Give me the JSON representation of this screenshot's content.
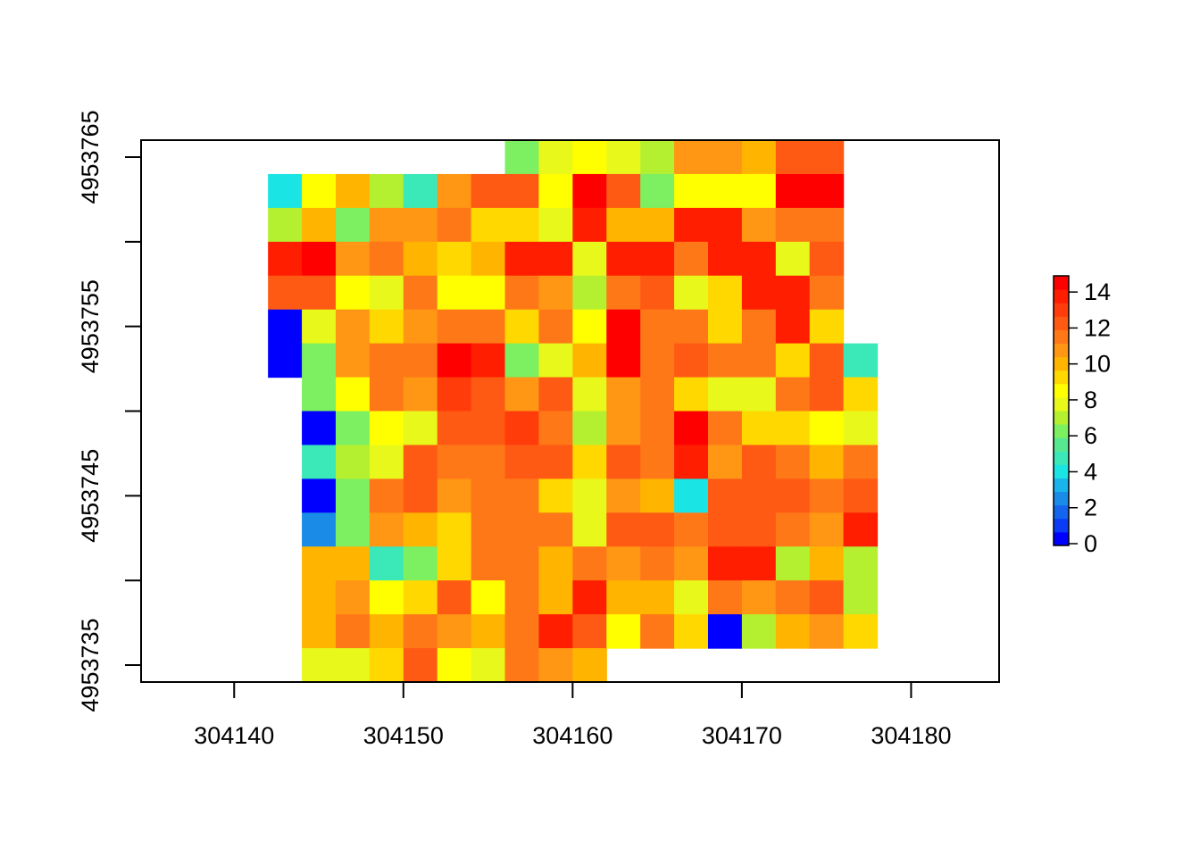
{
  "chart_data": {
    "type": "heatmap",
    "title": "",
    "xlabel": "",
    "ylabel": "",
    "xlim": [
      304134.5,
      304185.2
    ],
    "ylim": [
      4953734,
      4953766
    ],
    "x_ticks": [
      304140,
      304150,
      304160,
      304170,
      304180
    ],
    "y_ticks": [
      4953735,
      4953740,
      4953745,
      4953750,
      4953755,
      4953760,
      4953765
    ],
    "y_tick_labels": [
      "4953735",
      "",
      "4953745",
      "",
      "4953755",
      "",
      "4953765"
    ],
    "cell_size": 2,
    "x_origin": 304142,
    "y_top": 4953766,
    "grid": false,
    "legend": {
      "position": "right",
      "min": 0,
      "max": 15,
      "ticks": [
        0,
        2,
        4,
        6,
        8,
        10,
        12,
        14
      ],
      "tick_labels": [
        "0",
        "2",
        "4",
        "6",
        "8",
        "10",
        "12",
        "14"
      ],
      "colors": [
        "#0000ff",
        "#0a3cf5",
        "#1464ee",
        "#1a8ce8",
        "#1ab4ec",
        "#1ae4e4",
        "#3ae8b8",
        "#58e890",
        "#7cf060",
        "#b4f030",
        "#e8f81a",
        "#ffff00",
        "#ffd800",
        "#ffb400",
        "#ff9614",
        "#ff7818",
        "#ff5a14",
        "#ff3c0a",
        "#ff1e00",
        "#ff0000"
      ]
    },
    "values": [
      [
        null,
        null,
        null,
        null,
        null,
        null,
        null,
        6,
        8,
        9,
        8,
        7,
        11,
        11,
        10,
        13,
        13,
        null,
        null
      ],
      [
        4,
        9,
        10,
        7,
        5,
        11,
        13,
        13,
        9,
        15,
        13,
        6,
        9,
        9,
        9,
        15,
        15,
        null,
        null
      ],
      [
        7,
        10,
        6,
        11,
        11,
        11.5,
        9.5,
        9.5,
        8,
        14,
        10,
        10,
        14,
        14,
        11,
        11.5,
        12,
        null,
        null
      ],
      [
        14,
        15,
        11,
        12,
        10,
        9.5,
        10,
        14,
        14.5,
        8,
        14.5,
        14,
        11.5,
        14,
        14,
        8,
        13,
        null,
        null
      ],
      [
        13,
        13,
        9,
        8,
        11.5,
        9,
        9,
        12,
        11,
        7,
        12,
        13,
        7.5,
        9.5,
        14,
        14.5,
        12,
        null,
        null
      ],
      [
        0,
        8,
        11,
        9.5,
        11,
        11.5,
        11.5,
        9.5,
        11.5,
        9,
        15,
        11.5,
        12,
        9.5,
        12,
        14,
        9.5,
        null,
        null
      ],
      [
        0,
        6.5,
        11,
        11.5,
        12,
        15,
        14.5,
        6.5,
        8,
        10,
        15,
        12,
        13,
        12,
        11.5,
        9.5,
        13,
        5,
        null
      ],
      [
        null,
        6.5,
        9,
        11.5,
        11,
        13.5,
        13,
        11,
        13,
        8,
        11,
        11.5,
        9.5,
        8,
        8,
        11.5,
        13,
        9.5,
        null
      ],
      [
        null,
        0,
        6.5,
        9,
        8,
        13,
        13,
        13.5,
        12,
        7,
        11,
        11.5,
        15,
        12,
        9.5,
        9.5,
        9,
        8,
        null
      ],
      [
        null,
        5,
        7,
        8,
        13,
        11.5,
        11.5,
        13,
        13,
        9.5,
        13,
        11.5,
        14,
        11,
        13,
        12,
        10,
        12,
        null
      ],
      [
        null,
        0,
        6,
        12,
        13,
        11,
        12,
        12,
        9.5,
        8,
        11,
        10,
        4,
        13,
        13,
        13,
        11.5,
        13,
        null
      ],
      [
        null,
        2,
        6.5,
        11,
        10,
        9.5,
        12,
        12,
        11.5,
        8,
        13,
        13,
        12,
        13,
        13,
        12,
        11,
        14,
        null
      ],
      [
        null,
        10,
        10,
        5,
        6.5,
        9.5,
        11.5,
        11.5,
        10,
        12,
        11,
        12,
        11,
        14,
        14,
        7,
        10,
        7,
        null
      ],
      [
        null,
        10,
        11,
        9,
        9.5,
        13,
        9,
        11.5,
        10,
        14,
        10,
        10,
        8,
        11.5,
        11,
        12,
        13,
        7,
        null
      ],
      [
        null,
        10,
        11.5,
        10,
        11.5,
        11,
        10,
        11.5,
        14,
        13,
        9,
        11.5,
        9.5,
        0,
        7,
        10,
        11,
        9.5,
        null
      ],
      [
        null,
        8,
        8,
        9.5,
        13,
        9,
        8,
        11.5,
        11,
        10,
        null,
        null,
        null,
        null,
        null,
        null,
        null,
        null,
        null
      ]
    ]
  }
}
